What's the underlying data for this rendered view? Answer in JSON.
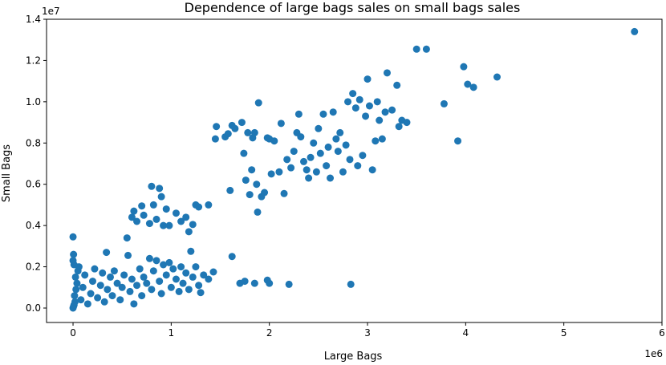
{
  "chart_data": {
    "type": "scatter",
    "title": "Dependence of large bags sales on small bags sales",
    "xlabel": "Large Bags",
    "ylabel": "Small Bags",
    "x_offset_label": "1e6",
    "y_offset_label": "1e7",
    "xlim": [
      -270000,
      6000000
    ],
    "ylim": [
      -700000,
      14000000
    ],
    "xticks": [
      0,
      1000000,
      2000000,
      3000000,
      4000000,
      5000000,
      6000000
    ],
    "xtick_labels": [
      "0",
      "1",
      "2",
      "3",
      "4",
      "5",
      "6"
    ],
    "yticks": [
      0,
      2000000,
      4000000,
      6000000,
      8000000,
      10000000,
      12000000,
      14000000
    ],
    "ytick_labels": [
      "0.0",
      "0.2",
      "0.4",
      "0.6",
      "0.8",
      "1.0",
      "1.2",
      "1.4"
    ],
    "grid": false,
    "marker_color": "#1f77b4",
    "series": [
      {
        "points": [
          [
            0,
            0
          ],
          [
            5000,
            80000
          ],
          [
            10000,
            150000
          ],
          [
            20000,
            300000
          ],
          [
            15000,
            600000
          ],
          [
            30000,
            900000
          ],
          [
            40000,
            1200000
          ],
          [
            25000,
            1500000
          ],
          [
            50000,
            1800000
          ],
          [
            10000,
            2100000
          ],
          [
            0,
            2300000
          ],
          [
            5000,
            2600000
          ],
          [
            0,
            3450000
          ],
          [
            60000,
            2000000
          ],
          [
            80000,
            400000
          ],
          [
            100000,
            1000000
          ],
          [
            120000,
            1600000
          ],
          [
            150000,
            200000
          ],
          [
            180000,
            700000
          ],
          [
            200000,
            1300000
          ],
          [
            220000,
            1900000
          ],
          [
            250000,
            500000
          ],
          [
            280000,
            1100000
          ],
          [
            300000,
            1700000
          ],
          [
            320000,
            300000
          ],
          [
            350000,
            900000
          ],
          [
            340000,
            2700000
          ],
          [
            380000,
            1500000
          ],
          [
            400000,
            600000
          ],
          [
            420000,
            1800000
          ],
          [
            450000,
            1200000
          ],
          [
            480000,
            400000
          ],
          [
            500000,
            1000000
          ],
          [
            520000,
            1600000
          ],
          [
            550000,
            3400000
          ],
          [
            560000,
            2550000
          ],
          [
            580000,
            800000
          ],
          [
            600000,
            1400000
          ],
          [
            620000,
            200000
          ],
          [
            650000,
            1100000
          ],
          [
            680000,
            1900000
          ],
          [
            700000,
            600000
          ],
          [
            720000,
            1500000
          ],
          [
            750000,
            1200000
          ],
          [
            780000,
            2400000
          ],
          [
            800000,
            900000
          ],
          [
            820000,
            1800000
          ],
          [
            850000,
            2300000
          ],
          [
            880000,
            1300000
          ],
          [
            900000,
            700000
          ],
          [
            920000,
            2100000
          ],
          [
            950000,
            1600000
          ],
          [
            980000,
            2200000
          ],
          [
            1000000,
            1000000
          ],
          [
            1020000,
            1900000
          ],
          [
            1050000,
            1400000
          ],
          [
            1080000,
            800000
          ],
          [
            1100000,
            2000000
          ],
          [
            1120000,
            1200000
          ],
          [
            1150000,
            1700000
          ],
          [
            1180000,
            900000
          ],
          [
            1200000,
            2750000
          ],
          [
            1220000,
            1500000
          ],
          [
            1250000,
            2000000
          ],
          [
            1280000,
            1100000
          ],
          [
            1300000,
            750000
          ],
          [
            1330000,
            1600000
          ],
          [
            1380000,
            1400000
          ],
          [
            1430000,
            1750000
          ],
          [
            600000,
            4400000
          ],
          [
            620000,
            4700000
          ],
          [
            650000,
            4200000
          ],
          [
            700000,
            4950000
          ],
          [
            720000,
            4500000
          ],
          [
            780000,
            4100000
          ],
          [
            800000,
            5900000
          ],
          [
            820000,
            5000000
          ],
          [
            850000,
            4300000
          ],
          [
            880000,
            5800000
          ],
          [
            900000,
            5400000
          ],
          [
            920000,
            4000000
          ],
          [
            950000,
            4800000
          ],
          [
            980000,
            4000000
          ],
          [
            1050000,
            4600000
          ],
          [
            1100000,
            4200000
          ],
          [
            1150000,
            4400000
          ],
          [
            1180000,
            3700000
          ],
          [
            1220000,
            4050000
          ],
          [
            1250000,
            5000000
          ],
          [
            1280000,
            4900000
          ],
          [
            1380000,
            5000000
          ],
          [
            1620000,
            2500000
          ],
          [
            1700000,
            1200000
          ],
          [
            1750000,
            1300000
          ],
          [
            1850000,
            1200000
          ],
          [
            1980000,
            1350000
          ],
          [
            2000000,
            1200000
          ],
          [
            2200000,
            1150000
          ],
          [
            2830000,
            1150000
          ],
          [
            1450000,
            8200000
          ],
          [
            1460000,
            8800000
          ],
          [
            1550000,
            8300000
          ],
          [
            1580000,
            8450000
          ],
          [
            1600000,
            5700000
          ],
          [
            1620000,
            8850000
          ],
          [
            1650000,
            8700000
          ],
          [
            1720000,
            9000000
          ],
          [
            1740000,
            7500000
          ],
          [
            1760000,
            6200000
          ],
          [
            1780000,
            8500000
          ],
          [
            1800000,
            5500000
          ],
          [
            1820000,
            6700000
          ],
          [
            1830000,
            8250000
          ],
          [
            1850000,
            8500000
          ],
          [
            1870000,
            6000000
          ],
          [
            1880000,
            4650000
          ],
          [
            1890000,
            9950000
          ],
          [
            1920000,
            5400000
          ],
          [
            1950000,
            5600000
          ],
          [
            1980000,
            8250000
          ],
          [
            2000000,
            8200000
          ],
          [
            2020000,
            6500000
          ],
          [
            2050000,
            8100000
          ],
          [
            2100000,
            6600000
          ],
          [
            2120000,
            8950000
          ],
          [
            2150000,
            5550000
          ],
          [
            2180000,
            7200000
          ],
          [
            2220000,
            6800000
          ],
          [
            2250000,
            7600000
          ],
          [
            2280000,
            8500000
          ],
          [
            2300000,
            9400000
          ],
          [
            2320000,
            8300000
          ],
          [
            2350000,
            7100000
          ],
          [
            2380000,
            6700000
          ],
          [
            2400000,
            6300000
          ],
          [
            2420000,
            7300000
          ],
          [
            2450000,
            8000000
          ],
          [
            2480000,
            6600000
          ],
          [
            2500000,
            8700000
          ],
          [
            2520000,
            7500000
          ],
          [
            2550000,
            9400000
          ],
          [
            2580000,
            6900000
          ],
          [
            2600000,
            7800000
          ],
          [
            2620000,
            6300000
          ],
          [
            2650000,
            9500000
          ],
          [
            2680000,
            8200000
          ],
          [
            2700000,
            7600000
          ],
          [
            2720000,
            8500000
          ],
          [
            2750000,
            6600000
          ],
          [
            2780000,
            7900000
          ],
          [
            2800000,
            10000000
          ],
          [
            2820000,
            7200000
          ],
          [
            2850000,
            10400000
          ],
          [
            2880000,
            9700000
          ],
          [
            2900000,
            6900000
          ],
          [
            2920000,
            10100000
          ],
          [
            2950000,
            7400000
          ],
          [
            2980000,
            9300000
          ],
          [
            3000000,
            11100000
          ],
          [
            3020000,
            9800000
          ],
          [
            3050000,
            6700000
          ],
          [
            3080000,
            8100000
          ],
          [
            3100000,
            10000000
          ],
          [
            3120000,
            9100000
          ],
          [
            3150000,
            8200000
          ],
          [
            3180000,
            9500000
          ],
          [
            3200000,
            11400000
          ],
          [
            3250000,
            9600000
          ],
          [
            3300000,
            10800000
          ],
          [
            3320000,
            8800000
          ],
          [
            3350000,
            9100000
          ],
          [
            3400000,
            9000000
          ],
          [
            3500000,
            12550000
          ],
          [
            3600000,
            12550000
          ],
          [
            3780000,
            9900000
          ],
          [
            3920000,
            8100000
          ],
          [
            3980000,
            11700000
          ],
          [
            4020000,
            10850000
          ],
          [
            4080000,
            10700000
          ],
          [
            4320000,
            11200000
          ],
          [
            5720000,
            13400000
          ]
        ]
      }
    ]
  }
}
